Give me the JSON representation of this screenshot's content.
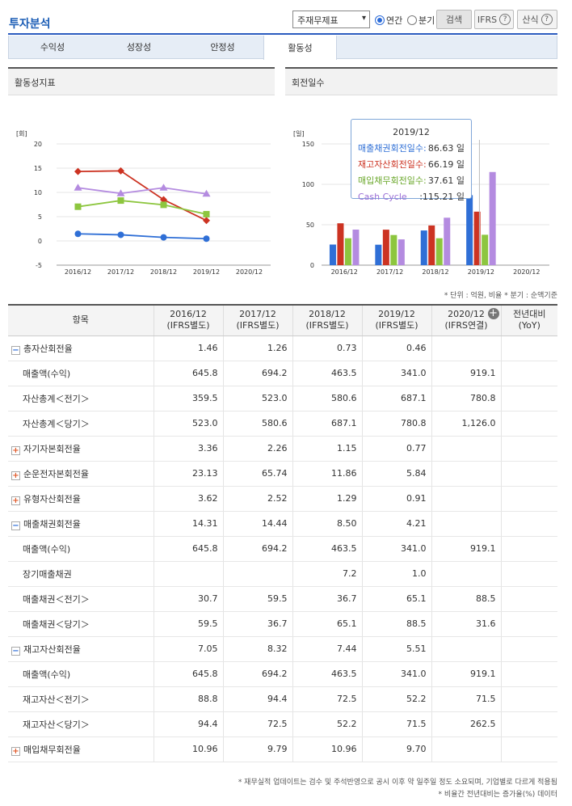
{
  "header": {
    "title": "투자분석",
    "select_value": "주재무제표",
    "radio_annual": "연간",
    "radio_quarter": "분기",
    "search_label": "검색",
    "ifrs_label": "IFRS",
    "formula_label": "산식"
  },
  "tabs": [
    {
      "label": "수익성",
      "active": false
    },
    {
      "label": "성장성",
      "active": false
    },
    {
      "label": "안정성",
      "active": false
    },
    {
      "label": "활동성",
      "active": true
    }
  ],
  "left_panel": {
    "title": "활동성지표"
  },
  "right_panel": {
    "title": "회전일수"
  },
  "colors": {
    "blue": "#2f6fd6",
    "red": "#cc3322",
    "green": "#8dc63f",
    "purple": "#b48be0",
    "accent": "#2b5bbf"
  },
  "chart_data": [
    {
      "type": "line",
      "unit_label": "[회]",
      "categories": [
        "2016/12",
        "2017/12",
        "2018/12",
        "2019/12",
        "2020/12"
      ],
      "ylim": [
        -5,
        20
      ],
      "yticks": [
        -5,
        0,
        5,
        10,
        15,
        20
      ],
      "series": [
        {
          "name": "총자산회전율",
          "color": "#2f6fd6",
          "marker": "circle",
          "values": [
            1.46,
            1.26,
            0.73,
            0.46,
            null
          ]
        },
        {
          "name": "매출채권회전율",
          "color": "#cc3322",
          "marker": "diamond",
          "values": [
            14.31,
            14.44,
            8.5,
            4.21,
            null
          ]
        },
        {
          "name": "재고자산회전율",
          "color": "#8dc63f",
          "marker": "square",
          "values": [
            7.05,
            8.32,
            7.44,
            5.51,
            null
          ]
        },
        {
          "name": "매입채무회전율",
          "color": "#b48be0",
          "marker": "triangle",
          "values": [
            10.96,
            9.79,
            10.96,
            9.7,
            null
          ]
        }
      ]
    },
    {
      "type": "bar",
      "unit_label": "[일]",
      "categories": [
        "2016/12",
        "2017/12",
        "2018/12",
        "2019/12",
        "2020/12"
      ],
      "ylim": [
        0,
        150
      ],
      "yticks": [
        0,
        50,
        100,
        150
      ],
      "series": [
        {
          "name": "매출채권회전일수",
          "color": "#2f6fd6",
          "values": [
            25.5,
            25.3,
            42.9,
            86.63,
            null
          ]
        },
        {
          "name": "재고자산회전일수",
          "color": "#cc3322",
          "values": [
            51.8,
            43.9,
            49.1,
            66.19,
            null
          ]
        },
        {
          "name": "매입채무회전일수",
          "color": "#8dc63f",
          "values": [
            33.3,
            37.3,
            33.3,
            37.61,
            null
          ]
        },
        {
          "name": "Cash Cycle",
          "color": "#b48be0",
          "values": [
            44.0,
            31.9,
            58.7,
            115.21,
            null
          ]
        }
      ],
      "tooltip": {
        "title": "2019/12",
        "rows": [
          {
            "label": "매출채권회전일수:",
            "value": "86.63 일",
            "color": "#2f6fd6"
          },
          {
            "label": "재고자산회전일수:",
            "value": "66.19 일",
            "color": "#cc3322"
          },
          {
            "label": "매입채무회전일수:",
            "value": "37.61 일",
            "color": "#8dc63f"
          },
          {
            "label": "Cash Cycle",
            "value": ":115.21 일",
            "color": "#b48be0"
          }
        ]
      }
    }
  ],
  "unit_note": "* 단위 : 억원, 비율   * 분기 : 순액기준",
  "table": {
    "headers": [
      {
        "line1": "항목",
        "line2": ""
      },
      {
        "line1": "2016/12",
        "line2": "(IFRS별도)"
      },
      {
        "line1": "2017/12",
        "line2": "(IFRS별도)"
      },
      {
        "line1": "2018/12",
        "line2": "(IFRS별도)"
      },
      {
        "line1": "2019/12",
        "line2": "(IFRS별도)"
      },
      {
        "line1": "2020/12",
        "line2": "(IFRS연결)"
      },
      {
        "line1": "전년대비",
        "line2": "(YoY)"
      }
    ],
    "rows": [
      {
        "label": "총자산회전율",
        "toggle": "minus",
        "values": [
          "1.46",
          "1.26",
          "0.73",
          "0.46",
          "",
          ""
        ]
      },
      {
        "label": "매출액(수익)",
        "toggle": "",
        "values": [
          "645.8",
          "694.2",
          "463.5",
          "341.0",
          "919.1",
          ""
        ]
      },
      {
        "label": "자산총계＜전기＞",
        "toggle": "",
        "values": [
          "359.5",
          "523.0",
          "580.6",
          "687.1",
          "780.8",
          ""
        ]
      },
      {
        "label": "자산총계＜당기＞",
        "toggle": "",
        "values": [
          "523.0",
          "580.6",
          "687.1",
          "780.8",
          "1,126.0",
          ""
        ]
      },
      {
        "label": "자기자본회전율",
        "toggle": "plus",
        "values": [
          "3.36",
          "2.26",
          "1.15",
          "0.77",
          "",
          ""
        ]
      },
      {
        "label": "순운전자본회전율",
        "toggle": "plus",
        "values": [
          "23.13",
          "65.74",
          "11.86",
          "5.84",
          "",
          ""
        ]
      },
      {
        "label": "유형자산회전율",
        "toggle": "plus",
        "values": [
          "3.62",
          "2.52",
          "1.29",
          "0.91",
          "",
          ""
        ]
      },
      {
        "label": "매출채권회전율",
        "toggle": "minus",
        "values": [
          "14.31",
          "14.44",
          "8.50",
          "4.21",
          "",
          ""
        ]
      },
      {
        "label": "매출액(수익)",
        "toggle": "",
        "values": [
          "645.8",
          "694.2",
          "463.5",
          "341.0",
          "919.1",
          ""
        ]
      },
      {
        "label": "장기매출채권",
        "toggle": "",
        "values": [
          "",
          "",
          "7.2",
          "1.0",
          "",
          ""
        ]
      },
      {
        "label": "매출채권＜전기＞",
        "toggle": "",
        "values": [
          "30.7",
          "59.5",
          "36.7",
          "65.1",
          "88.5",
          ""
        ]
      },
      {
        "label": "매출채권＜당기＞",
        "toggle": "",
        "values": [
          "59.5",
          "36.7",
          "65.1",
          "88.5",
          "31.6",
          ""
        ]
      },
      {
        "label": "재고자산회전율",
        "toggle": "minus",
        "values": [
          "7.05",
          "8.32",
          "7.44",
          "5.51",
          "",
          ""
        ]
      },
      {
        "label": "매출액(수익)",
        "toggle": "",
        "values": [
          "645.8",
          "694.2",
          "463.5",
          "341.0",
          "919.1",
          ""
        ]
      },
      {
        "label": "재고자산＜전기＞",
        "toggle": "",
        "values": [
          "88.8",
          "94.4",
          "72.5",
          "52.2",
          "71.5",
          ""
        ]
      },
      {
        "label": "재고자산＜당기＞",
        "toggle": "",
        "values": [
          "94.4",
          "72.5",
          "52.2",
          "71.5",
          "262.5",
          ""
        ]
      },
      {
        "label": "매입채무회전율",
        "toggle": "plus",
        "values": [
          "10.96",
          "9.79",
          "10.96",
          "9.70",
          "",
          ""
        ]
      }
    ]
  },
  "footnotes": [
    "* 재무실적 업데이트는 검수 및 주석반영으로 공시 이후 약 일주일 정도 소요되며, 기업별로 다르게 적용됨",
    "* 비율간 전년대비는 증가율(%) 데이터"
  ]
}
